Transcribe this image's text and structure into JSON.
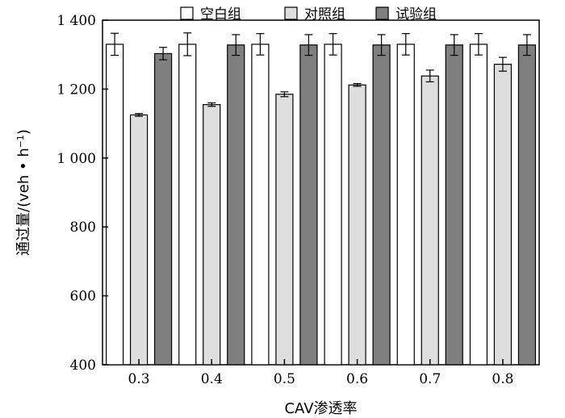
{
  "chart_data": {
    "type": "bar",
    "title": "",
    "xlabel": "CAV渗透率",
    "ylabel": "通过量/(veh • h",
    "ylabel_superscript": "−1",
    "ylabel_close": ")",
    "ylim": [
      400,
      1400
    ],
    "yticks": [
      400,
      600,
      800,
      1000,
      1200,
      1400
    ],
    "ytick_labels": [
      "400",
      "600",
      "800",
      "1 000",
      "1 200",
      "1 400"
    ],
    "categories": [
      "0.3",
      "0.4",
      "0.5",
      "0.6",
      "0.7",
      "0.8"
    ],
    "legend_position": "top",
    "grid": false,
    "series": [
      {
        "name": "空白组",
        "color": "#ffffff",
        "values": [
          1330,
          1330,
          1330,
          1330,
          1330,
          1330
        ],
        "errors": [
          32,
          33,
          31,
          31,
          31,
          31
        ]
      },
      {
        "name": "对照组",
        "color": "#dedede",
        "values": [
          1125,
          1155,
          1185,
          1212,
          1238,
          1272
        ],
        "errors": [
          4,
          5,
          7,
          4,
          17,
          20
        ]
      },
      {
        "name": "试验组",
        "color": "#7f7f7f",
        "values": [
          1303,
          1328,
          1328,
          1328,
          1328,
          1328
        ],
        "errors": [
          18,
          30,
          30,
          30,
          30,
          30
        ]
      }
    ]
  }
}
